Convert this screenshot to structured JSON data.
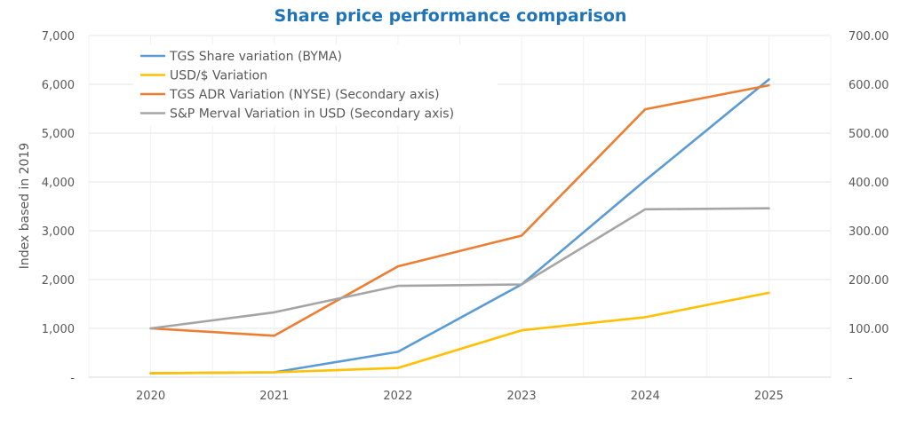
{
  "chart_data": {
    "type": "line",
    "title": "Share price performance comparison",
    "ylabel": "Index based in 2019",
    "categories": [
      "2020",
      "2021",
      "2022",
      "2023",
      "2024",
      "2025"
    ],
    "ylim": [
      0,
      7000
    ],
    "y2lim": [
      0,
      700
    ],
    "yticks": [
      "-",
      "1,000",
      "2,000",
      "3,000",
      "4,000",
      "5,000",
      "6,000",
      "7,000"
    ],
    "y2ticks": [
      "-",
      "100.00",
      "200.00",
      "300.00",
      "400.00",
      "500.00",
      "600.00",
      "700.00"
    ],
    "series": [
      {
        "name": "TGS Share variation (BYMA)",
        "axis": "secondary",
        "color": "#5B9BD5",
        "values": [
          8,
          10,
          52,
          190,
          403,
          610
        ]
      },
      {
        "name": "USD/$ Variation",
        "axis": "secondary",
        "color": "#FFC000",
        "values": [
          8,
          10,
          19,
          96,
          123,
          173
        ]
      },
      {
        "name": "TGS ADR Variation (NYSE) (Secondary axis)",
        "axis": "secondary",
        "color": "#ED7D31",
        "values": [
          100,
          85,
          227,
          290,
          549,
          598
        ]
      },
      {
        "name": "S&P Merval Variation in USD (Secondary axis)",
        "axis": "secondary",
        "color": "#A5A5A5",
        "values": [
          100,
          133,
          187,
          190,
          344,
          346
        ]
      }
    ],
    "legend_position": "top-left",
    "grid": true,
    "colors": {
      "title": "#1F73B7",
      "grid": "#E6E6E6",
      "text": "#595959"
    }
  }
}
